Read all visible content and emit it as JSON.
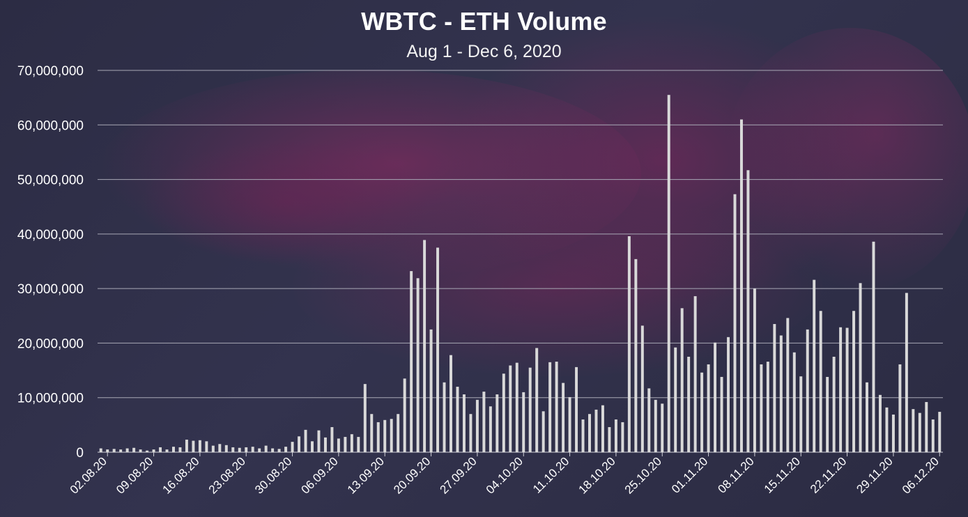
{
  "chart_data": {
    "type": "bar",
    "title": "WBTC - ETH Volume",
    "subtitle": "Aug 1 - Dec 6, 2020",
    "xlabel": "",
    "ylabel": "",
    "ylim": [
      0,
      70000000
    ],
    "yticks": [
      0,
      10000000,
      20000000,
      30000000,
      40000000,
      50000000,
      60000000,
      70000000
    ],
    "ytick_labels": [
      "0",
      "10,000,000",
      "20,000,000",
      "30,000,000",
      "40,000,000",
      "50,000,000",
      "60,000,000",
      "70,000,000"
    ],
    "x_start": "2020-08-01",
    "x_end": "2020-12-06",
    "xtick_labels": [
      "02.08.20",
      "09.08.20",
      "16.08.20",
      "23.08.20",
      "30.08.20",
      "06.09.20",
      "13.09.20",
      "20.09.20",
      "27.09.20",
      "04.10.20",
      "11.10.20",
      "18.10.20",
      "25.10.20",
      "01.11.20",
      "08.11.20",
      "15.11.20",
      "22.11.20",
      "29.11.20",
      "06.12.20"
    ],
    "grid": true,
    "legend": "none",
    "bar_color": "#d9d9d9",
    "values": [
      700000,
      500000,
      600000,
      500000,
      700000,
      800000,
      500000,
      300000,
      500000,
      900000,
      500000,
      1000000,
      900000,
      2300000,
      2100000,
      2200000,
      2000000,
      1200000,
      1500000,
      1300000,
      900000,
      800000,
      900000,
      1000000,
      700000,
      1200000,
      700000,
      600000,
      1000000,
      1900000,
      2900000,
      4100000,
      2000000,
      4000000,
      2700000,
      4600000,
      2500000,
      2800000,
      3300000,
      2800000,
      12500000,
      7000000,
      5500000,
      5900000,
      6100000,
      7000000,
      13500000,
      33200000,
      31900000,
      38900000,
      22500000,
      37500000,
      12800000,
      17800000,
      12000000,
      10600000,
      7000000,
      9600000,
      11100000,
      8400000,
      10600000,
      14400000,
      15900000,
      16400000,
      11000000,
      15500000,
      19100000,
      7500000,
      16500000,
      16600000,
      12700000,
      10100000,
      15600000,
      6000000,
      7000000,
      7800000,
      8600000,
      4600000,
      6000000,
      5500000,
      39600000,
      35400000,
      23200000,
      11700000,
      9600000,
      8900000,
      65500000,
      19200000,
      26400000,
      17500000,
      28600000,
      14600000,
      16100000,
      20100000,
      13800000,
      21100000,
      47300000,
      61000000,
      51700000,
      30000000,
      16100000,
      16600000,
      23500000,
      21400000,
      24600000,
      18300000,
      13900000,
      22500000,
      31600000,
      25900000,
      13800000,
      17500000,
      22900000,
      22800000,
      25900000,
      31000000,
      12800000,
      38600000,
      10500000,
      8200000,
      6900000,
      16100000,
      29200000,
      7900000,
      7200000,
      9200000,
      6000000,
      7400000
    ]
  }
}
